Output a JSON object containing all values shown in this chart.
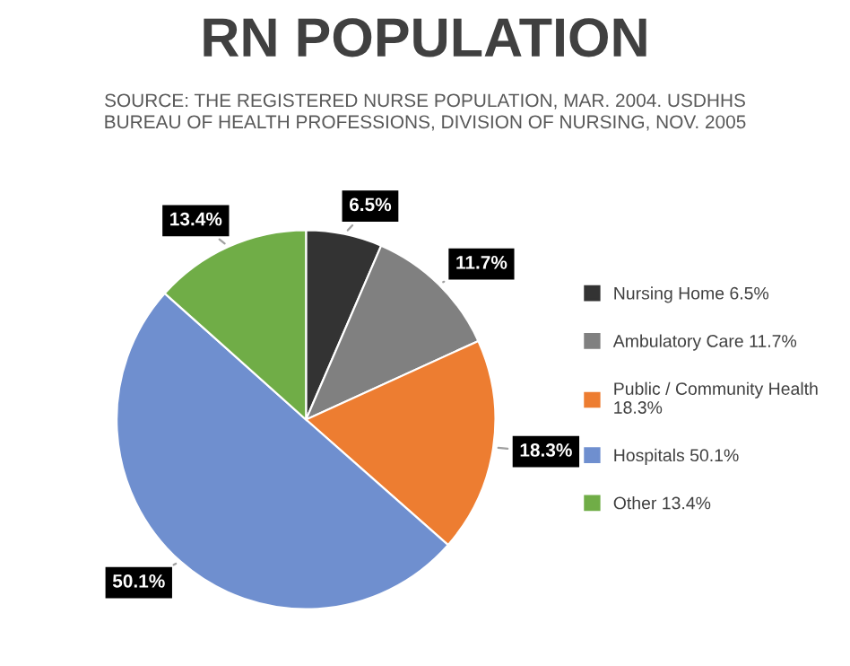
{
  "chart_data": {
    "type": "pie",
    "title": "RN POPULATION",
    "subtitle": "SOURCE: THE REGISTERED NURSE POPULATION, MAR. 2004. USDHHS\nBUREAU OF HEALTH PROFESSIONS, DIVISION OF NURSING, NOV. 2005",
    "categories": [
      "Nursing Home 6.5%",
      "Ambulatory Care 11.7%",
      "Public / Community Health\n18.3%",
      "Hospitals 50.1%",
      "Other 13.4%"
    ],
    "values": [
      6.5,
      11.7,
      18.3,
      50.1,
      13.4
    ],
    "colors": [
      "#333333",
      "#808080",
      "#ed7d31",
      "#6f8fcf",
      "#70ad47"
    ],
    "value_labels": [
      "6.5%",
      "11.7%",
      "18.3%",
      "50.1%",
      "13.4%"
    ],
    "legend": "right"
  }
}
